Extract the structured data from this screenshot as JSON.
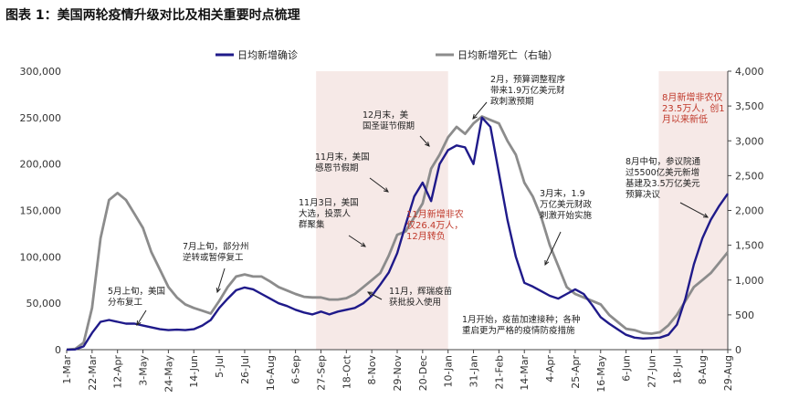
{
  "title": "图表 1：美国两轮疫情升级对比及相关重要时点梳理",
  "colors": {
    "cases": "#1f1a8a",
    "deaths": "#8c8c8c",
    "shade": "#f6e9e7",
    "red_text": "#c0392b"
  },
  "chart_data": {
    "type": "line",
    "x_tick_labels": [
      "1-Mar",
      "22-Mar",
      "12-Apr",
      "3-May",
      "24-May",
      "14-Jun",
      "5-Jul",
      "26-Jul",
      "16-Aug",
      "6-Sep",
      "27-Sep",
      "18-Oct",
      "8-Nov",
      "29-Nov",
      "20-Dec",
      "10-Jan",
      "31-Jan",
      "21-Feb",
      "14-Mar",
      "4-Apr",
      "25-Apr",
      "16-May",
      "6-Jun",
      "27-Jun",
      "18-Jul",
      "8-Aug",
      "29-Aug"
    ],
    "y_left": {
      "ticks": [
        "0",
        "50,000",
        "100,000",
        "150,000",
        "200,000",
        "250,000",
        "300,000"
      ],
      "min": 0,
      "max": 300000
    },
    "y_right": {
      "ticks": [
        "0",
        "500",
        "1,000",
        "1,500",
        "2,000",
        "2,500",
        "3,000",
        "3,500",
        "4,000"
      ],
      "min": 0,
      "max": 4000
    },
    "legend": {
      "position": "top"
    },
    "series": [
      {
        "name": "日均新增确诊",
        "axis": "left",
        "x": [
          0,
          7,
          14,
          21,
          28,
          35,
          42,
          49,
          56,
          63,
          70,
          77,
          84,
          91,
          98,
          105,
          112,
          119,
          126,
          133,
          140,
          147,
          154,
          161,
          168,
          175,
          182,
          189,
          196,
          203,
          210,
          217,
          224,
          231,
          238,
          245,
          252,
          259,
          266,
          273,
          280,
          287,
          294,
          301,
          308,
          315,
          322,
          329,
          336,
          343,
          350,
          357,
          364,
          371,
          378,
          385,
          392,
          399,
          406,
          413,
          420,
          427,
          434,
          441,
          448,
          455,
          462,
          469,
          476,
          483,
          490,
          497,
          504,
          511,
          518,
          525,
          532,
          539,
          546
        ],
        "values": [
          0,
          200,
          3500,
          18000,
          30000,
          32000,
          30000,
          28000,
          28000,
          26000,
          24000,
          22000,
          21000,
          21500,
          21000,
          22000,
          26000,
          32000,
          45000,
          55000,
          64000,
          67000,
          65000,
          60000,
          55000,
          50000,
          47000,
          43000,
          40000,
          38000,
          41000,
          38000,
          41000,
          43000,
          45000,
          50000,
          58000,
          70000,
          83000,
          104000,
          135000,
          165000,
          180000,
          160000,
          200000,
          215000,
          220000,
          218000,
          200000,
          250000,
          240000,
          190000,
          140000,
          100000,
          72000,
          68000,
          63000,
          58000,
          55000,
          60000,
          65000,
          60000,
          48000,
          35000,
          28000,
          22000,
          16000,
          13000,
          12000,
          12500,
          13000,
          16000,
          27000,
          55000,
          92000,
          120000,
          140000,
          155000,
          168000
        ]
      },
      {
        "name": "日均新增死亡（右轴）",
        "axis": "right",
        "x": [
          0,
          7,
          14,
          21,
          28,
          35,
          42,
          49,
          56,
          63,
          70,
          77,
          84,
          91,
          98,
          105,
          112,
          119,
          126,
          133,
          140,
          147,
          154,
          161,
          168,
          175,
          182,
          189,
          196,
          203,
          210,
          217,
          224,
          231,
          238,
          245,
          252,
          259,
          266,
          273,
          280,
          287,
          294,
          301,
          308,
          315,
          322,
          329,
          336,
          343,
          350,
          357,
          364,
          371,
          378,
          385,
          392,
          399,
          406,
          413,
          420,
          427,
          434,
          441,
          448,
          455,
          462,
          469,
          476,
          483,
          490,
          497,
          504,
          511,
          518,
          525,
          532,
          539,
          546
        ],
        "values": [
          0,
          10,
          100,
          600,
          1600,
          2150,
          2250,
          2150,
          1950,
          1750,
          1400,
          1150,
          900,
          750,
          650,
          600,
          560,
          520,
          700,
          900,
          1050,
          1080,
          1050,
          1050,
          980,
          900,
          850,
          800,
          760,
          750,
          750,
          720,
          720,
          740,
          800,
          900,
          1000,
          1100,
          1350,
          1650,
          1700,
          1900,
          2100,
          2600,
          2800,
          3050,
          3200,
          3100,
          3250,
          3350,
          3300,
          3250,
          3000,
          2800,
          2400,
          2200,
          1900,
          1500,
          1200,
          900,
          800,
          750,
          700,
          650,
          500,
          400,
          300,
          280,
          240,
          230,
          250,
          350,
          500,
          700,
          900,
          1000,
          1100,
          1250,
          1400
        ]
      }
    ],
    "shaded_periods": [
      {
        "x_start": 206,
        "x_end": 315
      },
      {
        "x_start": 489,
        "x_end": 546
      }
    ],
    "annotations": [
      {
        "id": "ann-may",
        "lines": [
          "5月上旬，美国",
          "分布复工"
        ],
        "color": "dark"
      },
      {
        "id": "ann-jul",
        "lines": [
          "7月上旬，部分州",
          "逆转或暂停复工"
        ],
        "color": "dark"
      },
      {
        "id": "ann-nov3",
        "lines": [
          "11月3日，美国",
          "大选，投票人",
          "群聚集"
        ],
        "color": "dark"
      },
      {
        "id": "ann-thanks",
        "lines": [
          "11月末，美国",
          "感恩节假期"
        ],
        "color": "dark"
      },
      {
        "id": "ann-xmas",
        "lines": [
          "12月末，美",
          "国圣诞节假期"
        ],
        "color": "dark"
      },
      {
        "id": "ann-nfp-nov",
        "lines": [
          "11月新增非农",
          "仅26.4万人，",
          "12月转负"
        ],
        "color": "red"
      },
      {
        "id": "ann-vaccine",
        "lines": [
          "11月，辉瑞疫苗",
          "获批投入使用"
        ],
        "color": "dark"
      },
      {
        "id": "ann-feb",
        "lines": [
          "2月，预算调整程序",
          "带来1.9万亿美元财",
          "政刺激预期"
        ],
        "color": "dark"
      },
      {
        "id": "ann-mar",
        "lines": [
          "3月末，1.9",
          "万亿美元财政",
          "刺激开始实施"
        ],
        "color": "dark"
      },
      {
        "id": "ann-jan",
        "lines": [
          "1月开始，疫苗加速接种；各种",
          "重启更为严格的疫情防疫措施"
        ],
        "color": "dark"
      },
      {
        "id": "ann-aug",
        "lines": [
          "8月中旬，参议院通",
          "过5500亿美元新增",
          "基建及3.5万亿美元",
          "预算决议"
        ],
        "color": "dark"
      },
      {
        "id": "ann-nfp-aug",
        "lines": [
          "8月新增非农仅",
          "23.5万人，创1",
          "月以来新低"
        ],
        "color": "red"
      }
    ]
  }
}
